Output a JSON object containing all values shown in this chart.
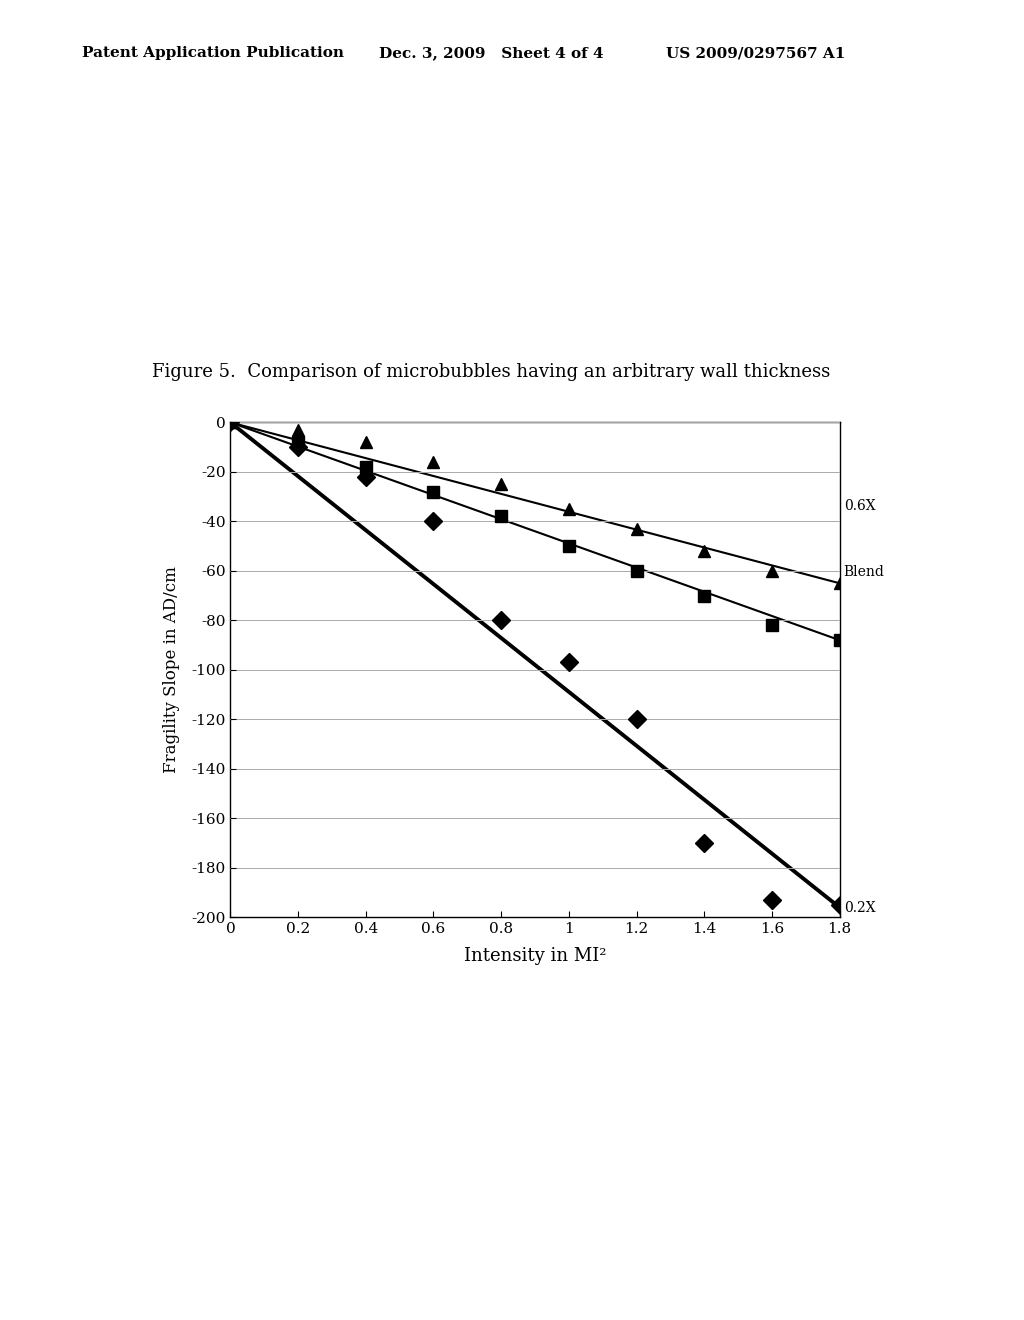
{
  "title_figure": "Figure 5.  Comparison of microbubbles having an arbitrary wall thickness",
  "header_left": "Patent Application Publication",
  "header_mid": "Dec. 3, 2009   Sheet 4 of 4",
  "header_right": "US 2009/0297567 A1",
  "xlabel": "Intensity in MI²",
  "ylabel": "Fragility Slope in AD/cm",
  "xlim": [
    0,
    1.8
  ],
  "ylim": [
    -200,
    0
  ],
  "xticks": [
    0,
    0.2,
    0.4,
    0.6,
    0.8,
    1.0,
    1.2,
    1.4,
    1.6,
    1.8
  ],
  "yticks": [
    0,
    -20,
    -40,
    -60,
    -80,
    -100,
    -120,
    -140,
    -160,
    -180,
    -200
  ],
  "series_06X": {
    "label": "0.6X",
    "x": [
      0,
      0.2,
      0.4,
      0.6,
      0.8,
      1.0,
      1.2,
      1.4,
      1.6,
      1.8
    ],
    "y": [
      0,
      -3,
      -8,
      -16,
      -25,
      -35,
      -43,
      -52,
      -60,
      -65
    ]
  },
  "series_blend": {
    "label": "Blend",
    "x": [
      0,
      0.2,
      0.4,
      0.6,
      0.8,
      1.0,
      1.2,
      1.4,
      1.6,
      1.8
    ],
    "y": [
      0,
      -8,
      -18,
      -28,
      -38,
      -50,
      -60,
      -70,
      -82,
      -88
    ]
  },
  "series_02X": {
    "label": "0.2X",
    "x": [
      0,
      0.2,
      0.4,
      0.6,
      0.8,
      1.0,
      1.2,
      1.4,
      1.6,
      1.8
    ],
    "y": [
      0,
      -10,
      -22,
      -40,
      -80,
      -97,
      -120,
      -170,
      -193,
      -195
    ]
  },
  "trendline_06X": {
    "x": [
      0,
      1.8
    ],
    "y": [
      0,
      -65
    ]
  },
  "trendline_blend": {
    "x": [
      0,
      1.8
    ],
    "y": [
      0,
      -88
    ]
  },
  "trendline_02X": {
    "x": [
      0,
      1.8
    ],
    "y": [
      0,
      -196
    ]
  },
  "annotation_06X": {
    "text": "0.6X"
  },
  "annotation_blend": {
    "text": "Blend"
  },
  "annotation_02X": {
    "text": "0.2X"
  },
  "plot_bg": "#ffffff",
  "fig_bg": "#ffffff"
}
